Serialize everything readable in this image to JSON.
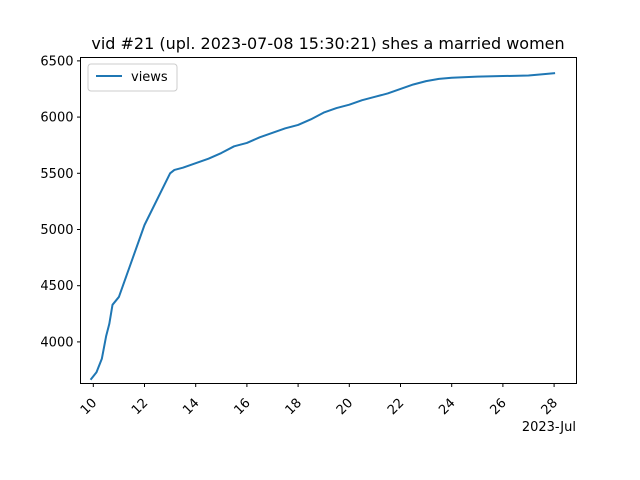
{
  "chart_data": {
    "type": "line",
    "title": "vid #21 (upl. 2023-07-08 15:30:21) shes a married women",
    "xlabel": "",
    "ylabel": "",
    "x_offset_label": "2023-Jul",
    "x_ticks": [
      "10",
      "12",
      "14",
      "16",
      "18",
      "20",
      "22",
      "24",
      "26",
      "28"
    ],
    "y_ticks": [
      "4000",
      "4500",
      "5000",
      "5500",
      "6000",
      "6500"
    ],
    "xlim": [
      "2023-07-09T12:00",
      "2023-07-28T21:00"
    ],
    "ylim": [
      3630,
      6530
    ],
    "grid": false,
    "legend_position": "top-left",
    "series": [
      {
        "name": "views",
        "color": "#1f77b4",
        "points": [
          [
            "2023-07-09T22:00",
            3670
          ],
          [
            "2023-07-10T03:00",
            3730
          ],
          [
            "2023-07-10T08:00",
            3850
          ],
          [
            "2023-07-10T12:00",
            4050
          ],
          [
            "2023-07-10T15:00",
            4160
          ],
          [
            "2023-07-10T18:00",
            4330
          ],
          [
            "2023-07-11T00:00",
            4400
          ],
          [
            "2023-07-12T00:00",
            5040
          ],
          [
            "2023-07-13T00:00",
            5500
          ],
          [
            "2023-07-13T04:00",
            5530
          ],
          [
            "2023-07-13T12:00",
            5550
          ],
          [
            "2023-07-14T00:00",
            5590
          ],
          [
            "2023-07-14T12:00",
            5630
          ],
          [
            "2023-07-15T00:00",
            5680
          ],
          [
            "2023-07-15T12:00",
            5740
          ],
          [
            "2023-07-16T00:00",
            5770
          ],
          [
            "2023-07-16T12:00",
            5820
          ],
          [
            "2023-07-17T00:00",
            5860
          ],
          [
            "2023-07-17T12:00",
            5900
          ],
          [
            "2023-07-18T00:00",
            5930
          ],
          [
            "2023-07-18T12:00",
            5980
          ],
          [
            "2023-07-19T00:00",
            6040
          ],
          [
            "2023-07-19T12:00",
            6080
          ],
          [
            "2023-07-20T00:00",
            6110
          ],
          [
            "2023-07-20T12:00",
            6150
          ],
          [
            "2023-07-21T00:00",
            6180
          ],
          [
            "2023-07-21T12:00",
            6210
          ],
          [
            "2023-07-22T00:00",
            6250
          ],
          [
            "2023-07-22T12:00",
            6290
          ],
          [
            "2023-07-23T00:00",
            6320
          ],
          [
            "2023-07-23T12:00",
            6340
          ],
          [
            "2023-07-24T00:00",
            6350
          ],
          [
            "2023-07-25T00:00",
            6360
          ],
          [
            "2023-07-26T00:00",
            6365
          ],
          [
            "2023-07-27T00:00",
            6370
          ],
          [
            "2023-07-27T12:00",
            6380
          ],
          [
            "2023-07-28T00:00",
            6390
          ]
        ]
      }
    ]
  }
}
